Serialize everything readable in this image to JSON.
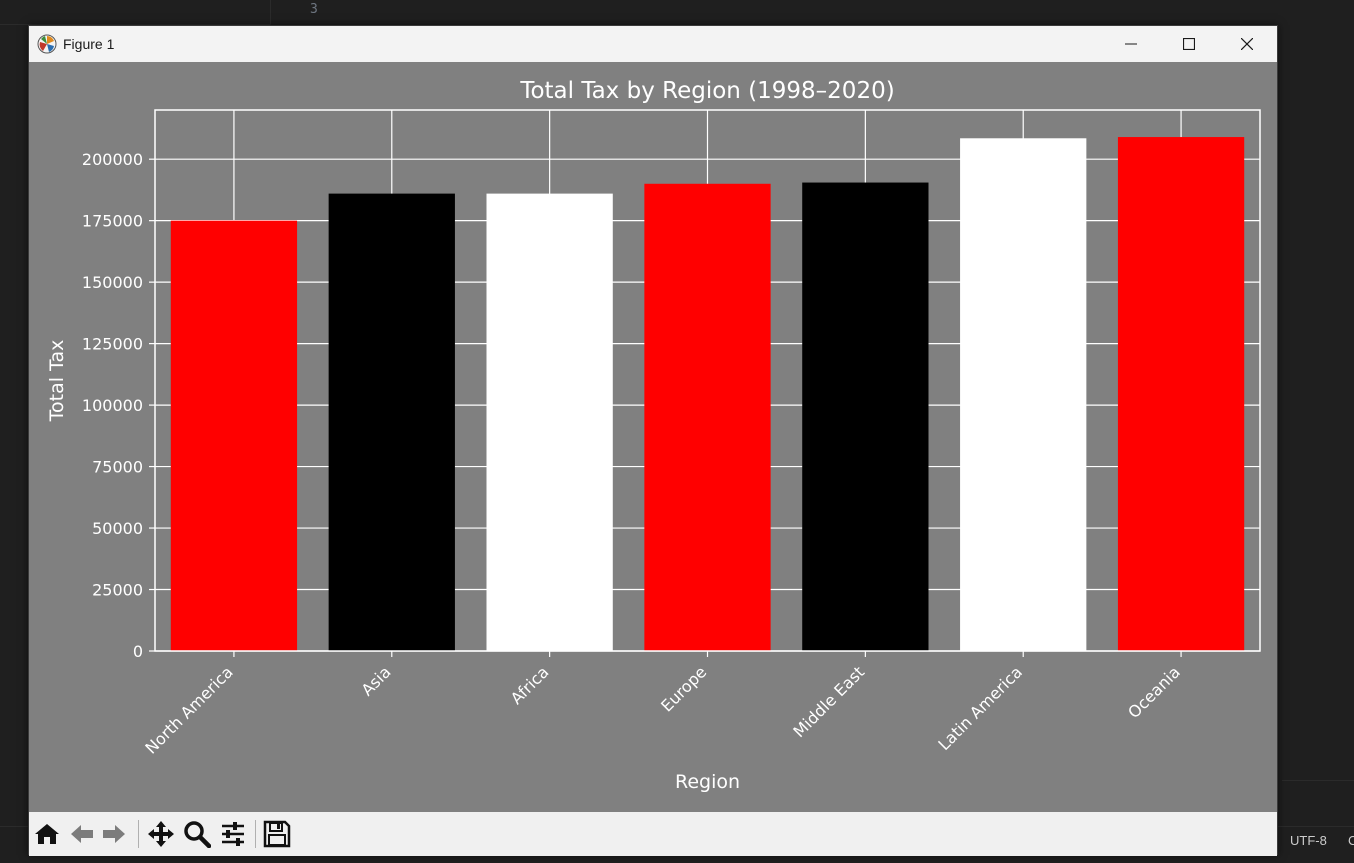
{
  "editor": {
    "line_number": "3"
  },
  "statusbar": {
    "encoding": "UTF-8",
    "extra": "C"
  },
  "window": {
    "title": "Figure 1"
  },
  "toolbar": {
    "buttons": [
      {
        "icon": "home-icon"
      },
      {
        "icon": "back-arrow-icon"
      },
      {
        "icon": "forward-arrow-icon"
      },
      {
        "icon": "pan-icon"
      },
      {
        "icon": "zoom-icon"
      },
      {
        "icon": "configure-subplots-icon"
      },
      {
        "icon": "save-icon"
      }
    ]
  },
  "chart_data": {
    "type": "bar",
    "title": "Total Tax by Region (1998–2020)",
    "xlabel": "Region",
    "ylabel": "Total Tax",
    "categories": [
      "North America",
      "Asia",
      "Africa",
      "Europe",
      "Middle East",
      "Latin America",
      "Oceania"
    ],
    "values": [
      175000,
      186000,
      186000,
      190000,
      190500,
      208500,
      209000
    ],
    "colors": [
      "#ff0000",
      "#000000",
      "#ffffff",
      "#ff0000",
      "#000000",
      "#ffffff",
      "#ff0000"
    ],
    "ylim": [
      0,
      220000
    ],
    "yticks": [
      0,
      25000,
      50000,
      75000,
      100000,
      125000,
      150000,
      175000,
      200000
    ],
    "ytick_labels": [
      "0",
      "25000",
      "50000",
      "75000",
      "100000",
      "125000",
      "150000",
      "175000",
      "200000"
    ],
    "grid": true,
    "background": "#808080",
    "text_color": "#ffffff"
  }
}
